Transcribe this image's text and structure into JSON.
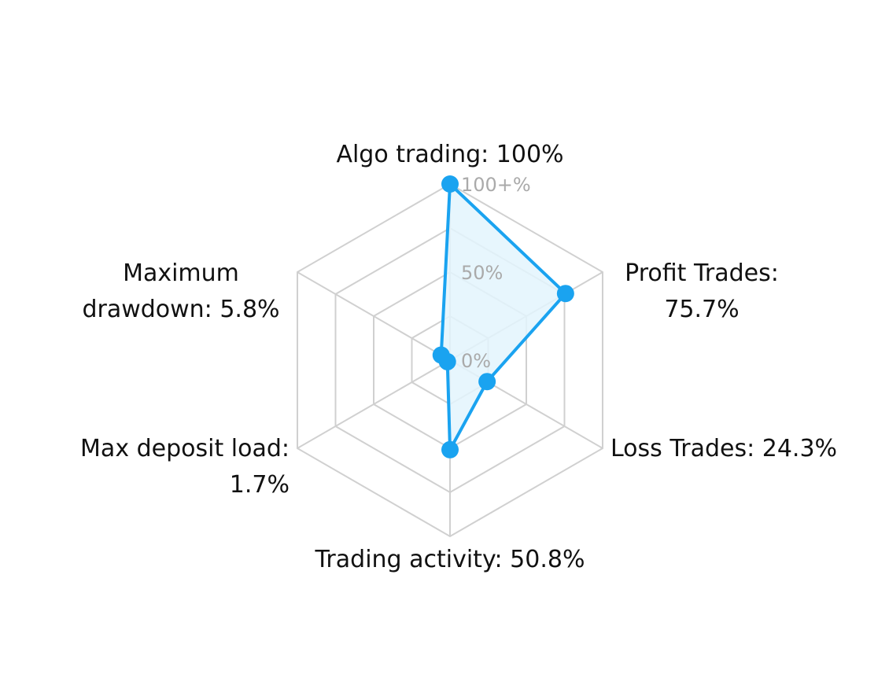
{
  "chart_data": {
    "type": "radar",
    "range": [
      0,
      100
    ],
    "ring_levels": [
      0,
      25,
      50,
      75,
      100
    ],
    "grid": true,
    "tick_labels": [
      {
        "value": 100,
        "text": "100+%"
      },
      {
        "value": 50,
        "text": "50%"
      },
      {
        "value": 0,
        "text": "0%"
      }
    ],
    "axes": [
      {
        "name": "Algo trading",
        "value": 100,
        "label_lines": [
          "Algo trading: 100%"
        ]
      },
      {
        "name": "Profit Trades",
        "value": 75.7,
        "label_lines": [
          "Profit Trades:",
          "75.7%"
        ]
      },
      {
        "name": "Loss Trades",
        "value": 24.3,
        "label_lines": [
          "Loss Trades: 24.3%"
        ]
      },
      {
        "name": "Trading activity",
        "value": 50.8,
        "label_lines": [
          "Trading activity: 50.8%"
        ]
      },
      {
        "name": "Max deposit load",
        "value": 1.7,
        "label_lines": [
          "Max deposit load:",
          "1.7%"
        ]
      },
      {
        "name": "Maximum drawdown",
        "value": 5.8,
        "label_lines": [
          "Maximum",
          "drawdown: 5.8%"
        ]
      }
    ],
    "colors": {
      "series": "#1aa3f0",
      "fill": "#e3f4fd",
      "grid": "#d0d0d0",
      "tick": "#aaaaaa",
      "label": "#111111"
    }
  }
}
